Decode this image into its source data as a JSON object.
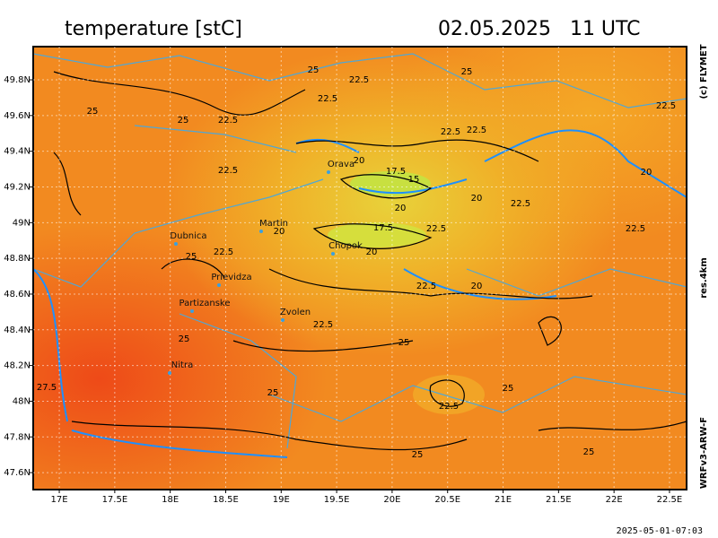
{
  "header": {
    "title": "temperature [stC]",
    "datetime": "02.05.2025   11 UTC"
  },
  "side": {
    "copyright": "(c) FLYMET",
    "resolution": "res.4km",
    "model": "WRFv3-ARW-F"
  },
  "footer": {
    "timestamp": "2025-05-01-07:03"
  },
  "map": {
    "xlim": [
      16.765,
      22.654
    ],
    "ylim": [
      47.505,
      49.986
    ],
    "xticks": [
      {
        "value": 17,
        "label": "17E"
      },
      {
        "value": 17.5,
        "label": "17.5E"
      },
      {
        "value": 18,
        "label": "18E"
      },
      {
        "value": 18.5,
        "label": "18.5E"
      },
      {
        "value": 19,
        "label": "19E"
      },
      {
        "value": 19.5,
        "label": "19.5E"
      },
      {
        "value": 20,
        "label": "20E"
      },
      {
        "value": 20.5,
        "label": "20.5E"
      },
      {
        "value": 21,
        "label": "21E"
      },
      {
        "value": 21.5,
        "label": "21.5E"
      },
      {
        "value": 22,
        "label": "22E"
      },
      {
        "value": 22.5,
        "label": "22.5E"
      }
    ],
    "yticks": [
      {
        "value": 47.6,
        "label": "47.6N"
      },
      {
        "value": 47.8,
        "label": "47.8N"
      },
      {
        "value": 48,
        "label": "48N"
      },
      {
        "value": 48.2,
        "label": "48.2N"
      },
      {
        "value": 48.4,
        "label": "48.4N"
      },
      {
        "value": 48.6,
        "label": "48.6N"
      },
      {
        "value": 48.8,
        "label": "48.8N"
      },
      {
        "value": 49,
        "label": "49N"
      },
      {
        "value": 49.2,
        "label": "49.2N"
      },
      {
        "value": 49.4,
        "label": "49.4N"
      },
      {
        "value": 49.6,
        "label": "49.6N"
      },
      {
        "value": 49.8,
        "label": "49.8N"
      }
    ],
    "places": [
      "Orava",
      "Martin",
      "Dubnica",
      "Chopok",
      "Prievidza",
      "Partizanske",
      "Zvolen",
      "Nitra"
    ],
    "contour_labels": [
      25,
      22.5,
      25,
      22.5,
      25,
      25,
      22.5,
      22.5,
      22.5,
      22.5,
      20,
      22.5,
      17.5,
      15,
      20,
      20,
      22.5,
      20,
      20,
      17.5,
      22.5,
      22.5,
      22.5,
      20,
      25,
      22.5,
      20,
      22.5,
      25,
      25,
      27.5,
      25,
      25,
      22.5,
      25,
      25
    ]
  }
}
